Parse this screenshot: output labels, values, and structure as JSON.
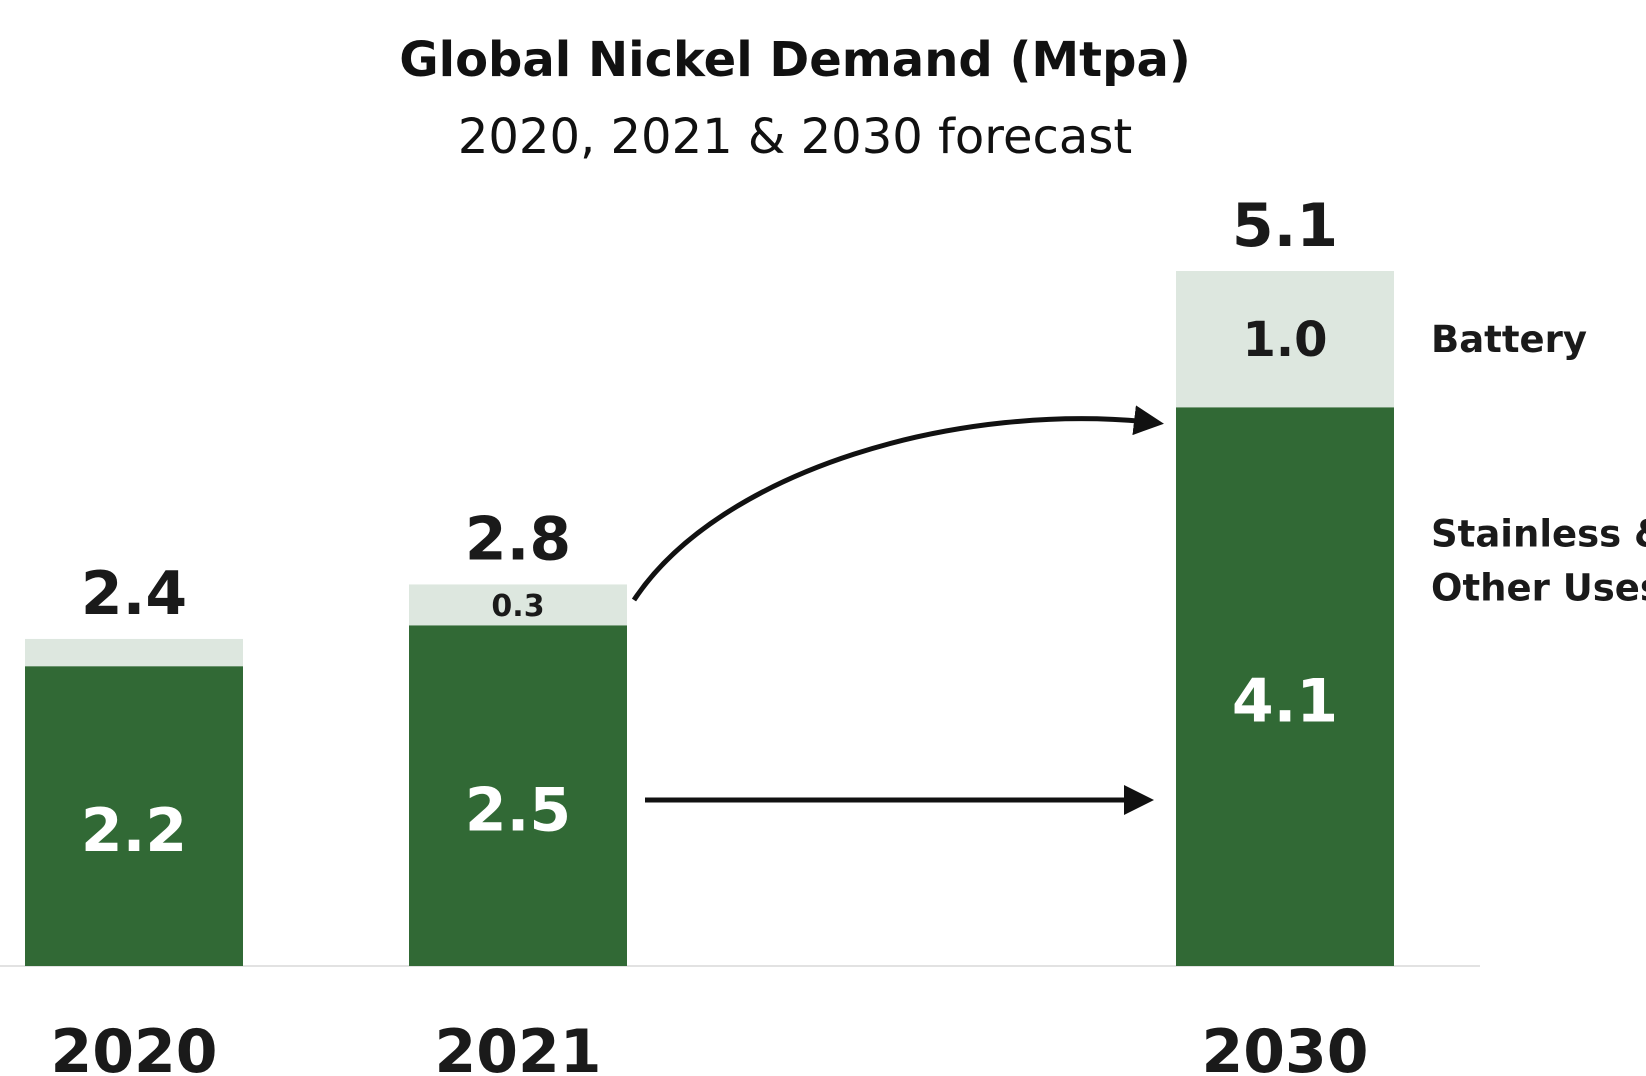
{
  "chart_data": {
    "type": "bar",
    "stacked": true,
    "title": "Global Nickel Demand (Mtpa)",
    "subtitle": "2020, 2021 & 2030 forecast",
    "categories": [
      "2020",
      "2021",
      "2030"
    ],
    "series": [
      {
        "name": "Stainless & Other Uses",
        "values": [
          2.2,
          2.5,
          4.1
        ],
        "labels": [
          "2.2",
          "2.5",
          "4.1"
        ],
        "color": "#316935"
      },
      {
        "name": "Battery",
        "values": [
          0.2,
          0.3,
          1.0
        ],
        "labels": [
          "",
          "0.3",
          "1.0"
        ],
        "color": "#dde7df"
      }
    ],
    "totals": [
      2.4,
      2.8,
      5.1
    ],
    "total_labels": [
      "2.4",
      "2.8",
      "5.1"
    ],
    "ylim": [
      0,
      5.1
    ],
    "grid": false,
    "legend_placement": "right",
    "annotations": [
      "arrow from 2021 Battery to 2030 Battery",
      "arrow from 2021 Stainless & Other Uses to 2030 Stainless & Other Uses"
    ]
  }
}
